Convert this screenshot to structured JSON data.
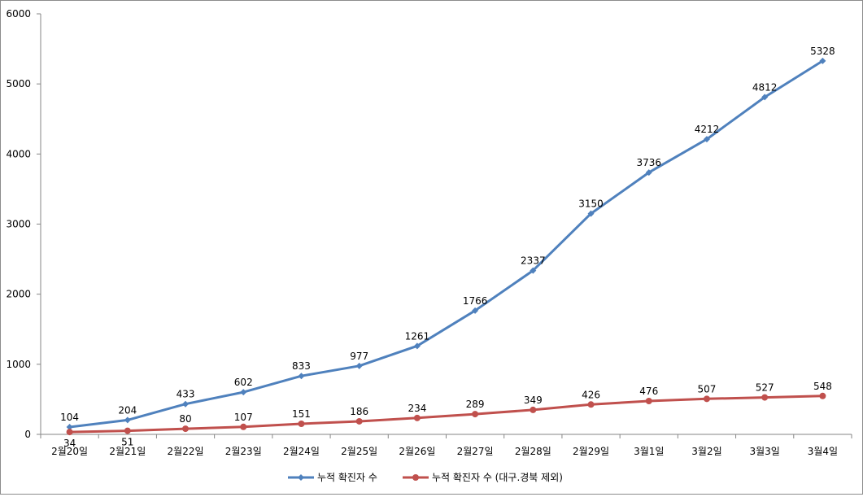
{
  "chart_data": {
    "type": "line",
    "categories": [
      "2월20일",
      "2월21일",
      "2월22일",
      "2월23일",
      "2월24일",
      "2월25일",
      "2월26일",
      "2월27일",
      "2월28일",
      "2월29일",
      "3월1일",
      "3월2일",
      "3월3일",
      "3월4일"
    ],
    "ylim": [
      0,
      6000
    ],
    "yticks": [
      0,
      1000,
      2000,
      3000,
      4000,
      5000,
      6000
    ],
    "grid": false,
    "legend_position": "bottom",
    "series": [
      {
        "name": "누적 확진자 수",
        "color": "#4f81bd",
        "values": [
          104,
          204,
          433,
          602,
          833,
          977,
          1261,
          1766,
          2337,
          3150,
          3736,
          4212,
          4812,
          5328
        ]
      },
      {
        "name": "누적 확진자 수 (대구.경북 제외)",
        "color": "#c0504d",
        "values": [
          34,
          51,
          80,
          107,
          151,
          186,
          234,
          289,
          349,
          426,
          476,
          507,
          527,
          548
        ]
      }
    ]
  }
}
